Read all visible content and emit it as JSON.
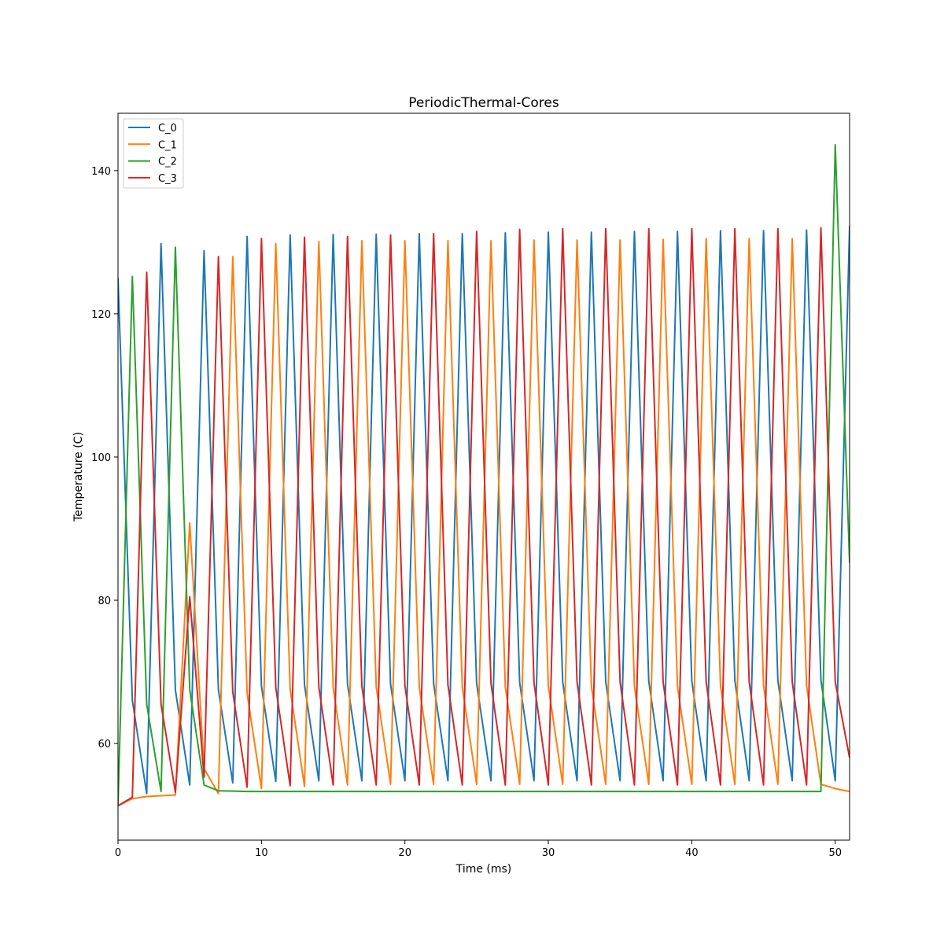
{
  "chart_data": {
    "type": "line",
    "title": "PeriodicThermal-Cores",
    "xlabel": "Time (ms)",
    "ylabel": "Temperature (C)",
    "xlim": [
      0,
      51
    ],
    "ylim": [
      46.5,
      148
    ],
    "xticks": [
      0,
      10,
      20,
      30,
      40,
      50
    ],
    "yticks": [
      60,
      80,
      100,
      120,
      140
    ],
    "grid": false,
    "legend_position": "top-left",
    "x": [
      0,
      1,
      2,
      3,
      4,
      5,
      6,
      7,
      8,
      9,
      10,
      11,
      12,
      13,
      14,
      15,
      16,
      17,
      18,
      19,
      20,
      21,
      22,
      23,
      24,
      25,
      26,
      27,
      28,
      29,
      30,
      31,
      32,
      33,
      34,
      35,
      36,
      37,
      38,
      39,
      40,
      41,
      42,
      43,
      44,
      45,
      46,
      47,
      48,
      49,
      50,
      51
    ],
    "series": [
      {
        "name": "C_0",
        "color": "#1f77b4",
        "values": [
          125.0,
          66.0,
          53.0,
          129.8,
          67.5,
          54.2,
          128.8,
          67.5,
          54.5,
          130.8,
          68.0,
          54.7,
          131.0,
          68.2,
          54.8,
          131.1,
          68.3,
          54.8,
          131.1,
          68.3,
          54.8,
          131.2,
          68.4,
          54.8,
          131.2,
          68.4,
          54.8,
          131.3,
          68.5,
          54.8,
          131.4,
          68.6,
          54.8,
          131.4,
          68.6,
          54.8,
          131.5,
          68.7,
          54.8,
          131.5,
          68.7,
          54.8,
          131.6,
          68.8,
          54.8,
          131.6,
          68.8,
          54.8,
          131.7,
          68.9,
          54.8,
          132.3
        ]
      },
      {
        "name": "C_1",
        "color": "#ff7f0e",
        "values": [
          51.3,
          52.3,
          52.6,
          52.7,
          52.8,
          90.8,
          56.5,
          53.0,
          128.0,
          67.0,
          53.7,
          129.8,
          67.6,
          54.0,
          130.1,
          67.8,
          54.2,
          130.2,
          67.9,
          54.3,
          130.2,
          67.9,
          54.3,
          130.2,
          67.9,
          54.3,
          130.2,
          67.9,
          54.3,
          130.3,
          68.0,
          54.3,
          130.3,
          68.0,
          54.3,
          130.3,
          68.0,
          54.3,
          130.4,
          68.0,
          54.3,
          130.5,
          68.1,
          54.3,
          130.5,
          68.1,
          54.3,
          130.5,
          68.1,
          54.3,
          53.7,
          53.3
        ]
      },
      {
        "name": "C_2",
        "color": "#2ca02c",
        "values": [
          51.3,
          125.2,
          65.5,
          53.3,
          129.3,
          67.5,
          54.2,
          53.4,
          53.35,
          53.3,
          53.3,
          53.3,
          53.3,
          53.3,
          53.3,
          53.3,
          53.3,
          53.3,
          53.3,
          53.3,
          53.3,
          53.3,
          53.3,
          53.3,
          53.3,
          53.3,
          53.3,
          53.3,
          53.3,
          53.3,
          53.3,
          53.3,
          53.3,
          53.3,
          53.3,
          53.3,
          53.3,
          53.3,
          53.3,
          53.3,
          53.3,
          53.3,
          53.3,
          53.3,
          53.3,
          53.3,
          53.3,
          53.3,
          53.3,
          53.3,
          143.6,
          85.2
        ]
      },
      {
        "name": "C_3",
        "color": "#d62728",
        "values": [
          51.3,
          52.5,
          125.8,
          65.5,
          53.2,
          80.5,
          55.3,
          128.0,
          67.2,
          53.9,
          130.5,
          67.8,
          54.1,
          130.7,
          67.9,
          54.2,
          130.8,
          68.0,
          54.2,
          131.0,
          68.1,
          54.2,
          131.2,
          68.2,
          54.2,
          131.5,
          68.4,
          54.2,
          131.8,
          68.5,
          54.2,
          131.9,
          68.6,
          54.2,
          131.9,
          68.6,
          54.2,
          131.9,
          68.6,
          54.2,
          131.9,
          68.6,
          54.2,
          131.9,
          68.6,
          54.2,
          131.9,
          68.6,
          54.2,
          132.0,
          68.6,
          58.0
        ]
      }
    ]
  }
}
